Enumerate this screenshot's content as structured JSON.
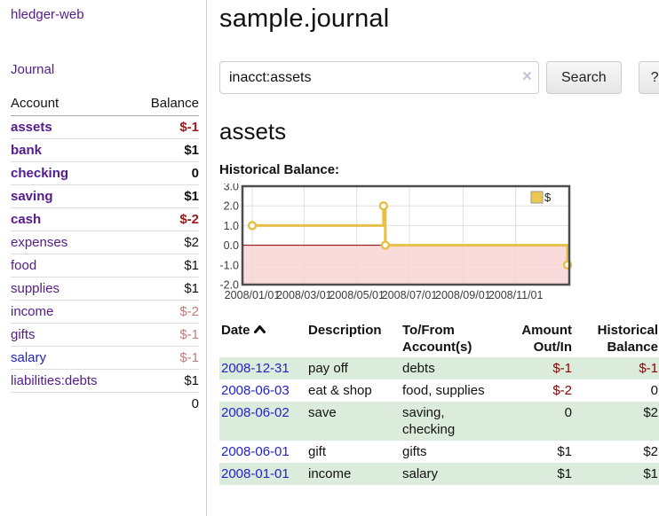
{
  "colors": {
    "link_purple": "#551a8b",
    "link_blue": "#2222cc",
    "negative_strong": "#961c1c",
    "negative_soft": "#c07d7d",
    "negative_table": "#8b0000",
    "row_stripe_green": "#dcecdc",
    "chart_line": "#e7c04a",
    "chart_negative_fill": "#f9d2d2",
    "chart_zero_line": "#8b0000",
    "chart_border": "#4d4d4d"
  },
  "sidebar": {
    "brand": "hledger-web",
    "journal_link": "Journal",
    "accounts": {
      "headers": {
        "account": "Account",
        "balance": "Balance"
      },
      "rows": [
        {
          "name": "assets",
          "indent": 1,
          "bold": true,
          "color": "purple",
          "balance": "$-1",
          "balance_class": "neg-strong"
        },
        {
          "name": "bank",
          "indent": 2,
          "bold": true,
          "color": "purple",
          "balance": "$1",
          "balance_class": ""
        },
        {
          "name": "checking",
          "indent": 3,
          "bold": true,
          "color": "purple",
          "balance": "0",
          "balance_class": ""
        },
        {
          "name": "saving",
          "indent": 3,
          "bold": true,
          "color": "purple",
          "balance": "$1",
          "balance_class": ""
        },
        {
          "name": "cash",
          "indent": 2,
          "bold": true,
          "color": "purple",
          "balance": "$-2",
          "balance_class": "neg-strong"
        },
        {
          "name": "expenses",
          "indent": 1,
          "bold": false,
          "color": "purple",
          "balance": "$2",
          "balance_class": ""
        },
        {
          "name": "food",
          "indent": 2,
          "bold": false,
          "color": "purple",
          "balance": "$1",
          "balance_class": ""
        },
        {
          "name": "supplies",
          "indent": 2,
          "bold": false,
          "color": "purple",
          "balance": "$1",
          "balance_class": ""
        },
        {
          "name": "income",
          "indent": 1,
          "bold": false,
          "color": "purple",
          "balance": "$-2",
          "balance_class": "neg-soft"
        },
        {
          "name": "gifts",
          "indent": 2,
          "bold": false,
          "color": "purple",
          "balance": "$-1",
          "balance_class": "neg-soft"
        },
        {
          "name": "salary",
          "indent": 2,
          "bold": false,
          "color": "blue",
          "balance": "$-1",
          "balance_class": "neg-soft"
        },
        {
          "name": "liabilities:debts",
          "indent": 1,
          "bold": false,
          "color": "purple",
          "balance": "$1",
          "balance_class": ""
        }
      ],
      "total": "0"
    }
  },
  "main": {
    "title": "sample.journal",
    "search": {
      "value": "inacct:assets",
      "clear_icon": "×",
      "search_button": "Search",
      "help_button": "?"
    },
    "account_heading": "assets",
    "chart_label": "Historical Balance:"
  },
  "chart_data": {
    "type": "line",
    "step": true,
    "series": [
      {
        "name": "$",
        "points": [
          [
            "2008-01-01",
            1
          ],
          [
            "2008-06-01",
            2
          ],
          [
            "2008-06-03",
            0
          ],
          [
            "2008-12-31",
            -1
          ]
        ]
      }
    ],
    "ylim": [
      -2,
      3
    ],
    "y_ticks": [
      3.0,
      2.0,
      1.0,
      0.0,
      -1.0,
      -2.0
    ],
    "y_tick_labels": [
      "3.0",
      "2.0",
      "1.0",
      "0.0",
      "-1.0",
      "-2.0"
    ],
    "x_ticks": [
      "2008-01-01",
      "2008-03-01",
      "2008-05-01",
      "2008-07-01",
      "2008-09-01",
      "2008-11-01"
    ],
    "x_tick_labels": [
      "2008/01/01",
      "2008/03/01",
      "2008/05/01",
      "2008/07/01",
      "2008/09/01",
      "2008/11/01"
    ],
    "x_range": [
      "2008-01-01",
      "2008-12-31"
    ],
    "grid": true,
    "legend": {
      "label": "$",
      "position": "top-right"
    },
    "shaded_negative_region": true
  },
  "register": {
    "headers": {
      "date": "Date",
      "description": "Description",
      "accounts": "To/From Account(s)",
      "amount": "Amount Out/In",
      "balance": "Historical Balance"
    },
    "rows": [
      {
        "date": "2008-12-31",
        "description": "pay off",
        "accounts": "debts",
        "amount": "$-1",
        "amount_neg": true,
        "balance": "$-1",
        "balance_neg": true
      },
      {
        "date": "2008-06-03",
        "description": "eat & shop",
        "accounts": "food, supplies",
        "amount": "$-2",
        "amount_neg": true,
        "balance": "0",
        "balance_neg": false
      },
      {
        "date": "2008-06-02",
        "description": "save",
        "accounts": "saving, checking",
        "amount": "0",
        "amount_neg": false,
        "balance": "$2",
        "balance_neg": false
      },
      {
        "date": "2008-06-01",
        "description": "gift",
        "accounts": "gifts",
        "amount": "$1",
        "amount_neg": false,
        "balance": "$2",
        "balance_neg": false
      },
      {
        "date": "2008-01-01",
        "description": "income",
        "accounts": "salary",
        "amount": "$1",
        "amount_neg": false,
        "balance": "$1",
        "balance_neg": false
      }
    ]
  }
}
